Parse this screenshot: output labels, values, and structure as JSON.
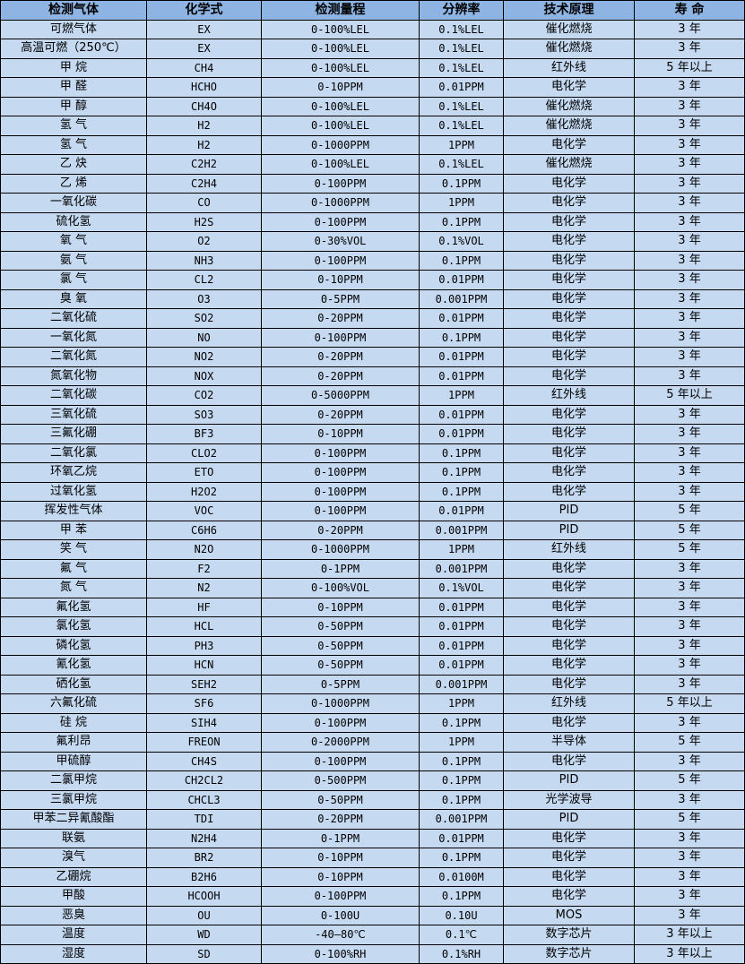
{
  "headers": [
    "检测气体",
    "化学式",
    "检测量程",
    "分辨率",
    "技术原理",
    "寿 命"
  ],
  "rows": [
    [
      "可燃气体",
      "EX",
      "0-100%LEL",
      "0.1%LEL",
      "催化燃烧",
      "3 年"
    ],
    [
      "高温可燃（250℃）",
      "EX",
      "0-100%LEL",
      "0.1%LEL",
      "催化燃烧",
      "3 年"
    ],
    [
      "甲 烷",
      "CH4",
      "0-100%LEL",
      "0.1%LEL",
      "红外线",
      "5 年以上"
    ],
    [
      "甲 醛",
      "HCHO",
      "0-10PPM",
      "0.01PPM",
      "电化学",
      "3 年"
    ],
    [
      "甲 醇",
      "CH4O",
      "0-100%LEL",
      "0.1%LEL",
      "催化燃烧",
      "3 年"
    ],
    [
      "氢 气",
      "H2",
      "0-100%LEL",
      "0.1%LEL",
      "催化燃烧",
      "3 年"
    ],
    [
      "氢 气",
      "H2",
      "0-1000PPM",
      "1PPM",
      "电化学",
      "3 年"
    ],
    [
      "乙 炔",
      "C2H2",
      "0-100%LEL",
      "0.1%LEL",
      "催化燃烧",
      "3 年"
    ],
    [
      "乙 烯",
      "C2H4",
      "0-100PPM",
      "0.1PPM",
      "电化学",
      "3 年"
    ],
    [
      "一氧化碳",
      "CO",
      "0-1000PPM",
      "1PPM",
      "电化学",
      "3 年"
    ],
    [
      "硫化氢",
      "H2S",
      "0-100PPM",
      "0.1PPM",
      "电化学",
      "3 年"
    ],
    [
      "氧 气",
      "O2",
      "0-30%VOL",
      "0.1%VOL",
      "电化学",
      "3 年"
    ],
    [
      "氨 气",
      "NH3",
      "0-100PPM",
      "0.1PPM",
      "电化学",
      "3 年"
    ],
    [
      "氯 气",
      "CL2",
      "0-10PPM",
      "0.01PPM",
      "电化学",
      "3 年"
    ],
    [
      "臭 氧",
      "O3",
      "0-5PPM",
      "0.001PPM",
      "电化学",
      "3 年"
    ],
    [
      "二氧化硫",
      "SO2",
      "0-20PPM",
      "0.01PPM",
      "电化学",
      "3 年"
    ],
    [
      "一氧化氮",
      "NO",
      "0-100PPM",
      "0.1PPM",
      "电化学",
      "3 年"
    ],
    [
      "二氧化氮",
      "NO2",
      "0-20PPM",
      "0.01PPM",
      "电化学",
      "3 年"
    ],
    [
      "氮氧化物",
      "NOX",
      "0-20PPM",
      "0.01PPM",
      "电化学",
      "3 年"
    ],
    [
      "二氧化碳",
      "CO2",
      "0-5000PPM",
      "1PPM",
      "红外线",
      "5 年以上"
    ],
    [
      "三氧化硫",
      "SO3",
      "0-20PPM",
      "0.01PPM",
      "电化学",
      "3 年"
    ],
    [
      "三氟化硼",
      "BF3",
      "0-10PPM",
      "0.01PPM",
      "电化学",
      "3 年"
    ],
    [
      "二氧化氯",
      "CLO2",
      "0-100PPM",
      "0.1PPM",
      "电化学",
      "3 年"
    ],
    [
      "环氧乙烷",
      "ETO",
      "0-100PPM",
      "0.1PPM",
      "电化学",
      "3 年"
    ],
    [
      "过氧化氢",
      "H2O2",
      "0-100PPM",
      "0.1PPM",
      "电化学",
      "3 年"
    ],
    [
      "挥发性气体",
      "VOC",
      "0-100PPM",
      "0.01PPM",
      "PID",
      "5 年"
    ],
    [
      "甲 苯",
      "C6H6",
      "0-20PPM",
      "0.001PPM",
      "PID",
      "5 年"
    ],
    [
      "笑 气",
      "N2O",
      "0-1000PPM",
      "1PPM",
      "红外线",
      "5 年"
    ],
    [
      "氟 气",
      "F2",
      "0-1PPM",
      "0.001PPM",
      "电化学",
      "3 年"
    ],
    [
      "氮 气",
      "N2",
      "0-100%VOL",
      "0.1%VOL",
      "电化学",
      "3 年"
    ],
    [
      "氟化氢",
      "HF",
      "0-10PPM",
      "0.01PPM",
      "电化学",
      "3 年"
    ],
    [
      "氯化氢",
      "HCL",
      "0-50PPM",
      "0.01PPM",
      "电化学",
      "3 年"
    ],
    [
      "磷化氢",
      "PH3",
      "0-50PPM",
      "0.01PPM",
      "电化学",
      "3 年"
    ],
    [
      "氰化氢",
      "HCN",
      "0-50PPM",
      "0.01PPM",
      "电化学",
      "3 年"
    ],
    [
      "硒化氢",
      "SEH2",
      "0-5PPM",
      "0.001PPM",
      "电化学",
      "3 年"
    ],
    [
      "六氟化硫",
      "SF6",
      "0-1000PPM",
      "1PPM",
      "红外线",
      "5 年以上"
    ],
    [
      "硅 烷",
      "SIH4",
      "0-100PPM",
      "0.1PPM",
      "电化学",
      "3 年"
    ],
    [
      "氟利昂",
      "FREON",
      "0-2000PPM",
      "1PPM",
      "半导体",
      "5 年"
    ],
    [
      "甲硫醇",
      "CH4S",
      "0-100PPM",
      "0.1PPM",
      "电化学",
      "3 年"
    ],
    [
      "二氯甲烷",
      "CH2CL2",
      "0-500PPM",
      "0.1PPM",
      "PID",
      "5 年"
    ],
    [
      "三氯甲烷",
      "CHCL3",
      "0-50PPM",
      "0.1PPM",
      "光学波导",
      "3 年"
    ],
    [
      "甲苯二异氰酸酯",
      "TDI",
      "0-20PPM",
      "0.001PPM",
      "PID",
      "5 年"
    ],
    [
      "联氨",
      "N2H4",
      "0-1PPM",
      "0.01PPM",
      "电化学",
      "3 年"
    ],
    [
      "溴气",
      "BR2",
      "0-10PPM",
      "0.1PPM",
      "电化学",
      "3 年"
    ],
    [
      "乙硼烷",
      "B2H6",
      "0-10PPM",
      "0.0100M",
      "电化学",
      "3 年"
    ],
    [
      "甲酸",
      "HCOOH",
      "0-100PPM",
      "0.1PPM",
      "电化学",
      "3 年"
    ],
    [
      "恶臭",
      "OU",
      "0-100U",
      "0.10U",
      "MOS",
      "3 年"
    ],
    [
      "温度",
      "WD",
      "-40—80℃",
      "0.1℃",
      "数字芯片",
      "3 年以上"
    ],
    [
      "湿度",
      "SD",
      "0-100%RH",
      "0.1%RH",
      "数字芯片",
      "3 年以上"
    ]
  ],
  "colors": {
    "header_bg": "#8db4e2",
    "row_bg": "#c5d9f1",
    "border": "#000000"
  }
}
